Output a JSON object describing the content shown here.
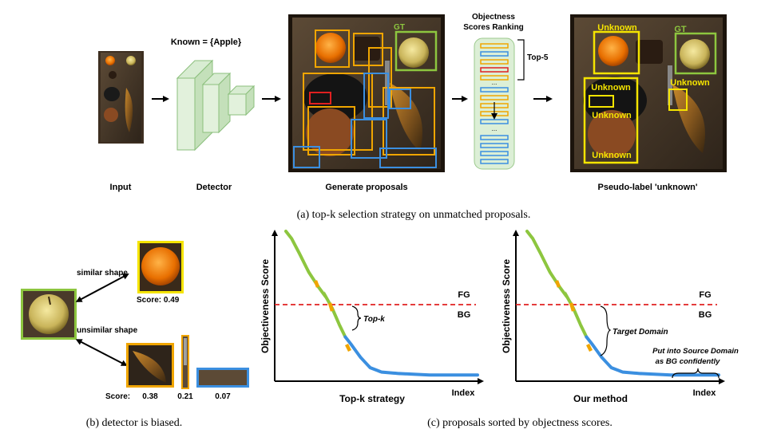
{
  "panel_a": {
    "input_label": "Input",
    "detector_label": "Detector",
    "known_label": "Known = {Apple}",
    "proposals_label": "Generate proposals",
    "ranking_title_1": "Objectness",
    "ranking_title_2": "Scores Ranking",
    "topk_label": "Top-5",
    "gt_label": "GT",
    "unknown_label": "Unknown",
    "pseudo_label": "Pseudo-label 'unknown'",
    "caption": "(a) top-k selection strategy on unmatched proposals."
  },
  "panel_b": {
    "similar_label": "similar shape",
    "unsimilar_label": "unsimilar shape",
    "score_orange": "Score: 0.49",
    "score_prefix": "Score:",
    "score_banana": "0.38",
    "score_knife": "0.21",
    "score_table": "0.07",
    "caption": "(b) detector is biased."
  },
  "panel_c": {
    "ylabel": "Objectiveness Score",
    "xlabel": "Index",
    "fg_label": "FG",
    "bg_label": "BG",
    "left_subtitle": "Top-k  strategy",
    "left_annotation": "Top-k",
    "right_subtitle": "Our method",
    "right_annotation": "Target Domain",
    "source_annotation_1": "Put into Source Domain",
    "source_annotation_2": "as BG confidently",
    "caption": "(c) proposals sorted by objectness scores."
  },
  "colors": {
    "known": "#8dc63f",
    "unknown": "#f5e400",
    "proposal_orange": "#f0a500",
    "proposal_blue": "#3b8fe0",
    "proposal_red": "#e02020",
    "threshold": "#e02020",
    "curve_green": "#8dc63f",
    "curve_blue": "#3b8fe0"
  },
  "chart_data": [
    {
      "type": "line",
      "title": "",
      "subtitle": "Top-k  strategy",
      "xlabel": "Index",
      "ylabel": "Objectiveness Score",
      "threshold_labels": [
        "FG",
        "BG"
      ],
      "annotation": "Top-k",
      "segments": [
        {
          "color": "green",
          "x": [
            0,
            0.03,
            0.07,
            0.12,
            0.17,
            0.21,
            0.24,
            0.28,
            0.31
          ],
          "y": [
            1.0,
            0.95,
            0.85,
            0.72,
            0.62,
            0.55,
            0.48,
            0.36,
            0.28
          ]
        },
        {
          "color": "blue",
          "x": [
            0.31,
            0.34,
            0.39,
            0.44,
            0.5,
            0.6,
            0.75,
            0.9,
            1.0
          ],
          "y": [
            0.28,
            0.23,
            0.14,
            0.07,
            0.04,
            0.03,
            0.02,
            0.02,
            0.02
          ]
        }
      ]
    },
    {
      "type": "line",
      "title": "",
      "subtitle": "Our method",
      "xlabel": "Index",
      "ylabel": "Objectiveness Score",
      "threshold_labels": [
        "FG",
        "BG"
      ],
      "annotation": "Target Domain",
      "annotation_2": "Put into Source Domain as BG confidently"
    }
  ]
}
